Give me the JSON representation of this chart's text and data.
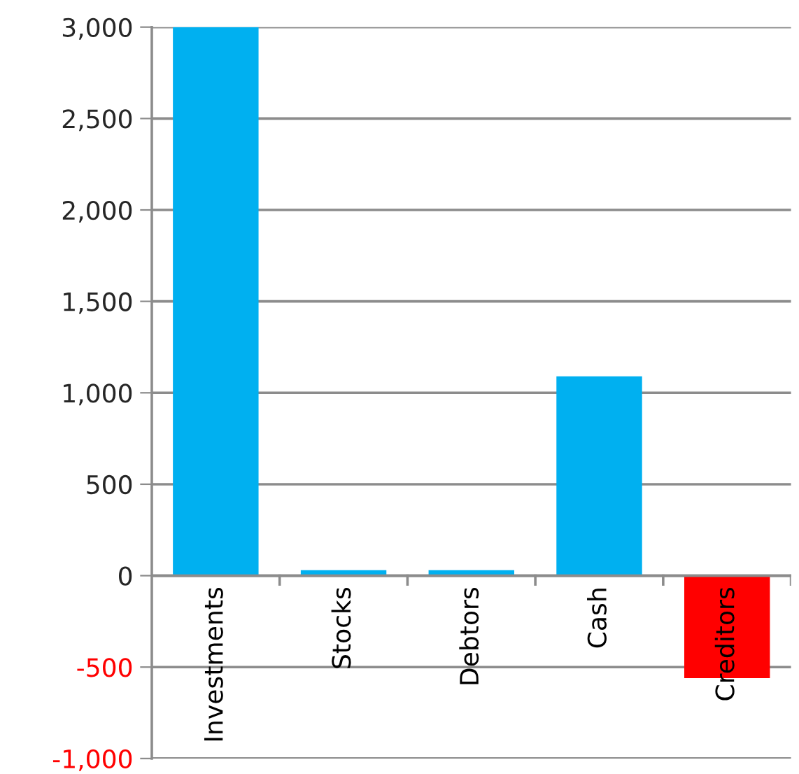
{
  "chart_data": {
    "type": "bar",
    "categories": [
      "Investments",
      "Stocks",
      "Debtors",
      "Cash",
      "Creditors"
    ],
    "values": [
      3000,
      30,
      30,
      1090,
      -560
    ],
    "colors": [
      "#00b0f0",
      "#00b0f0",
      "#00b0f0",
      "#00b0f0",
      "#ff0000"
    ],
    "ylim": [
      -1000,
      3000
    ],
    "yticks": [
      {
        "value": -1000,
        "label": "-1,000"
      },
      {
        "value": -500,
        "label": "-500"
      },
      0,
      {
        "value": 500,
        "label": "500"
      },
      {
        "value": 1000,
        "label": "1,000"
      },
      {
        "value": 1500,
        "label": "1,500"
      },
      {
        "value": 2000,
        "label": "2,000"
      },
      {
        "value": 2500,
        "label": "2,500"
      },
      {
        "value": 3000,
        "label": "3,000"
      }
    ],
    "grid": "y"
  }
}
